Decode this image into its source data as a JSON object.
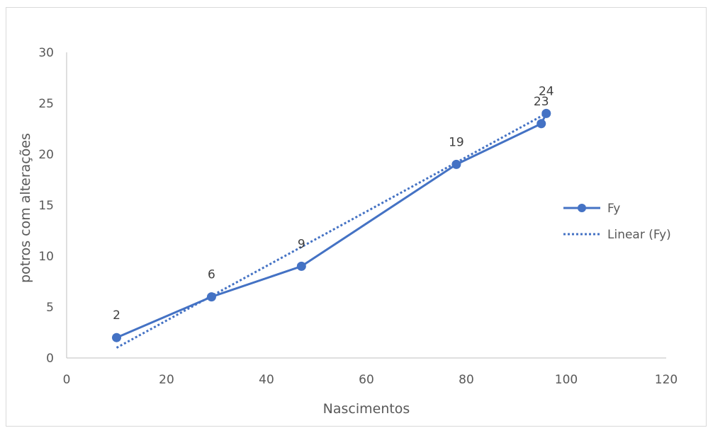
{
  "chart_data": {
    "type": "scatter",
    "xlabel": "Nascimentos",
    "ylabel": "potros com alterações",
    "xlim": [
      0,
      120
    ],
    "ylim": [
      0,
      30
    ],
    "x_ticks": [
      "0",
      "20",
      "40",
      "60",
      "80",
      "100",
      "120"
    ],
    "y_ticks": [
      "0",
      "5",
      "10",
      "15",
      "20",
      "25",
      "30"
    ],
    "series": [
      {
        "name": "Fy",
        "color": "#4472c4",
        "style": "line-with-markers",
        "points": [
          {
            "x": 10,
            "y": 2,
            "label": "2"
          },
          {
            "x": 29,
            "y": 6,
            "label": "6"
          },
          {
            "x": 47,
            "y": 9,
            "label": "9"
          },
          {
            "x": 78,
            "y": 19,
            "label": "19"
          },
          {
            "x": 95,
            "y": 23,
            "label": "23"
          },
          {
            "x": 96,
            "y": 24,
            "label": "24"
          }
        ]
      }
    ],
    "trendline": {
      "name": "Linear (Fy)",
      "type": "linear",
      "color": "#4472c4",
      "style": "dotted",
      "from": {
        "x": 10,
        "y": 1
      },
      "to": {
        "x": 96,
        "y": 24
      }
    },
    "grid": false,
    "legend_position": "right"
  }
}
